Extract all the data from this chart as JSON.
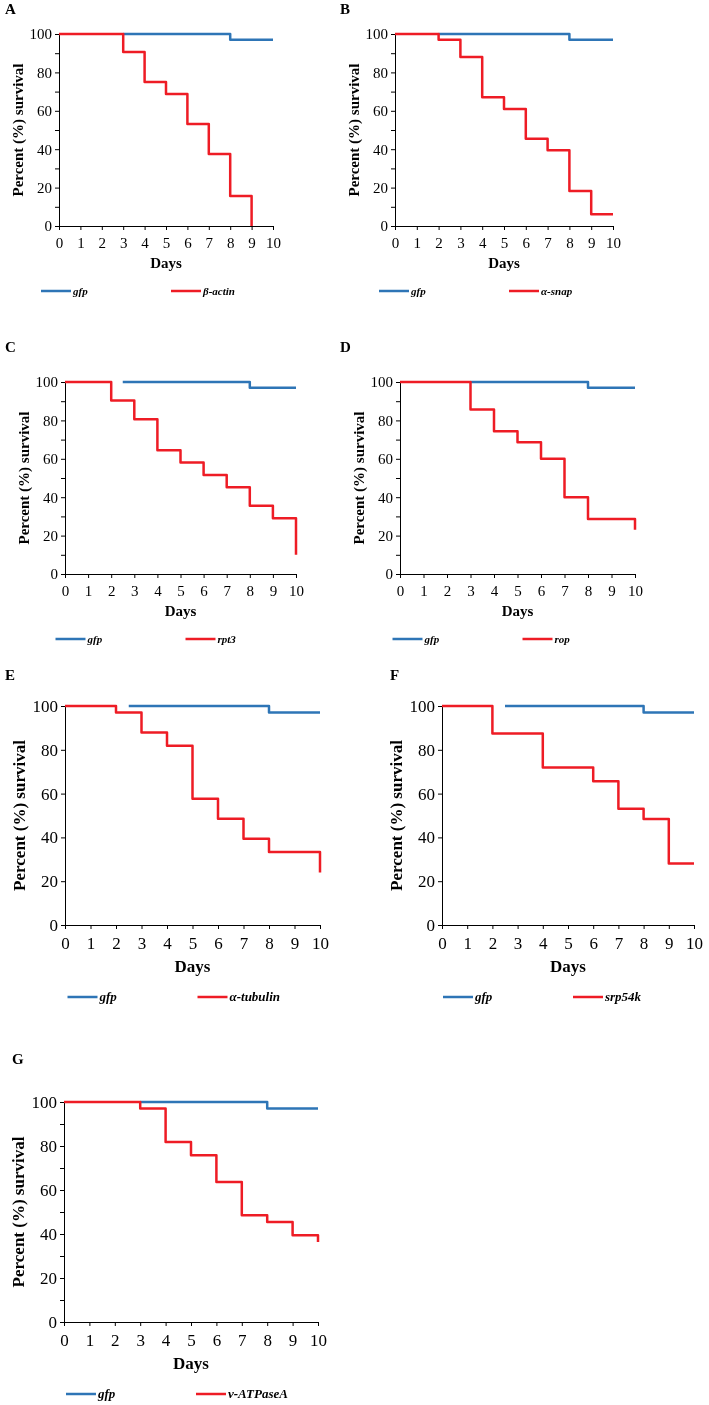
{
  "chart_data": [
    {
      "type": "step",
      "title": "A",
      "xlabel": "Days",
      "ylabel": "Percent (%) survival",
      "xlim": [
        0,
        10
      ],
      "ylim": [
        0,
        100
      ],
      "xticks": [
        0,
        1,
        2,
        3,
        4,
        5,
        6,
        7,
        8,
        9,
        10
      ],
      "yticks": [
        0,
        {
          "value": 10,
          "label": null
        },
        20,
        {
          "value": 30,
          "label": null
        },
        40,
        {
          "value": 50,
          "label": null
        },
        60,
        {
          "value": 70,
          "label": null
        },
        80,
        {
          "value": 90,
          "label": null
        },
        100
      ],
      "legend": "bottom",
      "grid": false,
      "series": [
        {
          "name": "gfp",
          "color": "#2e75b6",
          "x": [
            3,
            8,
            10
          ],
          "values": [
            100,
            97,
            97
          ]
        },
        {
          "name": "β-actin",
          "color": "#ee1c25",
          "x": [
            0,
            3,
            4,
            5,
            6,
            7,
            8,
            9
          ],
          "values": [
            100,
            90.6,
            75,
            68.8,
            53.1,
            37.5,
            15.6,
            0
          ]
        }
      ]
    },
    {
      "type": "step",
      "title": "B",
      "xlabel": "Days",
      "ylabel": "Percent (%) survival",
      "xlim": [
        0,
        10
      ],
      "ylim": [
        0,
        100
      ],
      "xticks": [
        0,
        1,
        2,
        3,
        4,
        5,
        6,
        7,
        8,
        9,
        10
      ],
      "yticks": [
        0,
        {
          "value": 10,
          "label": null
        },
        20,
        {
          "value": 30,
          "label": null
        },
        40,
        {
          "value": 50,
          "label": null
        },
        60,
        {
          "value": 70,
          "label": null
        },
        80,
        {
          "value": 90,
          "label": null
        },
        100
      ],
      "legend": "bottom",
      "grid": false,
      "series": [
        {
          "name": "gfp",
          "color": "#2e75b6",
          "x": [
            2,
            8,
            10
          ],
          "values": [
            100,
            97,
            97
          ]
        },
        {
          "name": "α-snap",
          "color": "#ee1c25",
          "x": [
            0,
            2,
            3,
            4,
            5,
            6,
            7,
            8,
            9,
            10
          ],
          "values": [
            100,
            97,
            88,
            67,
            61,
            45.5,
            39.4,
            18.2,
            6.1,
            6.1
          ]
        }
      ]
    },
    {
      "type": "step",
      "title": "C",
      "xlabel": "Days",
      "ylabel": "Percent (%) survival",
      "xlim": [
        0,
        10
      ],
      "ylim": [
        0,
        100
      ],
      "xticks": [
        0,
        1,
        2,
        3,
        4,
        5,
        6,
        7,
        8,
        9,
        10
      ],
      "yticks": [
        0,
        {
          "value": 10,
          "label": null
        },
        20,
        {
          "value": 30,
          "label": null
        },
        40,
        {
          "value": 50,
          "label": null
        },
        60,
        {
          "value": 70,
          "label": null
        },
        80,
        {
          "value": 90,
          "label": null
        },
        100
      ],
      "legend": "bottom",
      "grid": false,
      "series": [
        {
          "name": "gfp",
          "color": "#2e75b6",
          "x": [
            2.5,
            8,
            10
          ],
          "values": [
            100,
            97,
            97
          ]
        },
        {
          "name": "rpt3",
          "color": "#ee1c25",
          "x": [
            0,
            2,
            3,
            4,
            5,
            6,
            7,
            8,
            9,
            10,
            10
          ],
          "values": [
            100,
            90.3,
            80.6,
            64.5,
            58.1,
            51.6,
            45.2,
            35.5,
            29,
            29,
            10
          ]
        }
      ]
    },
    {
      "type": "step",
      "title": "D",
      "xlabel": "Days",
      "ylabel": "Percent (%) survival",
      "xlim": [
        0,
        10
      ],
      "ylim": [
        0,
        100
      ],
      "xticks": [
        0,
        1,
        2,
        3,
        4,
        5,
        6,
        7,
        8,
        9,
        10
      ],
      "yticks": [
        0,
        {
          "value": 10,
          "label": null
        },
        20,
        {
          "value": 30,
          "label": null
        },
        40,
        {
          "value": 50,
          "label": null
        },
        60,
        {
          "value": 70,
          "label": null
        },
        80,
        {
          "value": 90,
          "label": null
        },
        100
      ],
      "legend": "bottom",
      "grid": false,
      "series": [
        {
          "name": "gfp",
          "color": "#2e75b6",
          "x": [
            3,
            8,
            10
          ],
          "values": [
            100,
            97,
            97
          ]
        },
        {
          "name": "rop",
          "color": "#ee1c25",
          "x": [
            0,
            3,
            4,
            5,
            6,
            7,
            8,
            10,
            10
          ],
          "values": [
            100,
            85.7,
            74.3,
            68.6,
            60,
            40,
            28.6,
            28.6,
            23
          ]
        }
      ]
    },
    {
      "type": "step",
      "title": "E",
      "xlabel": "Days",
      "ylabel": "Percent (%) survival",
      "xlim": [
        0,
        10
      ],
      "ylim": [
        0,
        100
      ],
      "xticks": [
        0,
        1,
        2,
        3,
        4,
        5,
        6,
        7,
        8,
        9,
        10
      ],
      "yticks": [
        0,
        20,
        40,
        60,
        80,
        100
      ],
      "legend": "bottom",
      "grid": false,
      "series": [
        {
          "name": "gfp",
          "color": "#2e75b6",
          "x": [
            2.5,
            8,
            10
          ],
          "values": [
            100,
            97,
            97
          ]
        },
        {
          "name": "α-tubulin",
          "color": "#ee1c25",
          "x": [
            0,
            2,
            3,
            4,
            5,
            6,
            7,
            8,
            10,
            10
          ],
          "values": [
            100,
            97,
            87.9,
            81.8,
            57.6,
            48.5,
            39.4,
            33.3,
            33.3,
            24
          ]
        }
      ]
    },
    {
      "type": "step",
      "title": "F",
      "xlabel": "Days",
      "ylabel": "Percent (%) survival",
      "xlim": [
        0,
        10
      ],
      "ylim": [
        0,
        100
      ],
      "xticks": [
        0,
        1,
        2,
        3,
        4,
        5,
        6,
        7,
        8,
        9,
        10
      ],
      "yticks": [
        0,
        20,
        40,
        60,
        80,
        100
      ],
      "legend": "bottom",
      "grid": false,
      "series": [
        {
          "name": "gfp",
          "color": "#2e75b6",
          "x": [
            2.5,
            8,
            10
          ],
          "values": [
            100,
            97,
            97
          ]
        },
        {
          "name": "srp54k",
          "color": "#ee1c25",
          "x": [
            0,
            2,
            4,
            6,
            7,
            8,
            9,
            10
          ],
          "values": [
            100,
            87.5,
            71.9,
            65.6,
            53.1,
            48.4,
            28.1,
            28.1
          ]
        }
      ]
    },
    {
      "type": "step",
      "title": "G",
      "xlabel": "Days",
      "ylabel": "Percent (%) survival",
      "xlim": [
        0,
        10
      ],
      "ylim": [
        0,
        100
      ],
      "xticks": [
        0,
        1,
        2,
        3,
        4,
        5,
        6,
        7,
        8,
        9,
        10
      ],
      "yticks": [
        0,
        {
          "value": 10,
          "label": null
        },
        20,
        {
          "value": 30,
          "label": null
        },
        40,
        {
          "value": 50,
          "label": null
        },
        60,
        {
          "value": 70,
          "label": null
        },
        80,
        {
          "value": 90,
          "label": null
        },
        100
      ],
      "legend": "bottom",
      "grid": false,
      "series": [
        {
          "name": "gfp",
          "color": "#2e75b6",
          "x": [
            3,
            8,
            10
          ],
          "values": [
            100,
            97,
            97
          ]
        },
        {
          "name": "v-ATPaseA",
          "color": "#ee1c25",
          "x": [
            0,
            3,
            4,
            5,
            6,
            7,
            8,
            9,
            10,
            10
          ],
          "values": [
            100,
            97,
            81.8,
            75.8,
            63.6,
            48.5,
            45.5,
            39.4,
            39.4,
            36.4
          ]
        }
      ]
    }
  ]
}
